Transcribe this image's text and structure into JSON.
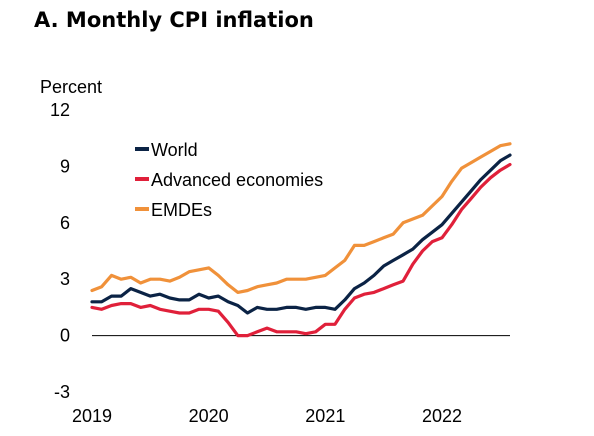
{
  "chart_data": {
    "type": "line",
    "title": "A. Monthly CPI inflation",
    "ylabel": "Percent",
    "xlabel": "",
    "ylim": [
      -3,
      12
    ],
    "yticks": [
      "12",
      "9",
      "6",
      "3",
      "0",
      "-3"
    ],
    "ytick_values": [
      12,
      9,
      6,
      3,
      0,
      -3
    ],
    "xticks": [
      "2019",
      "2020",
      "2021",
      "2022"
    ],
    "xtick_values": [
      2019,
      2020,
      2021,
      2022
    ],
    "x": [
      2019.0,
      2019.083,
      2019.167,
      2019.25,
      2019.333,
      2019.417,
      2019.5,
      2019.583,
      2019.667,
      2019.75,
      2019.833,
      2019.917,
      2020.0,
      2020.083,
      2020.167,
      2020.25,
      2020.333,
      2020.417,
      2020.5,
      2020.583,
      2020.667,
      2020.75,
      2020.833,
      2020.917,
      2021.0,
      2021.083,
      2021.167,
      2021.25,
      2021.333,
      2021.417,
      2021.5,
      2021.583,
      2021.667,
      2021.75,
      2021.833,
      2021.917,
      2022.0,
      2022.083,
      2022.167,
      2022.25,
      2022.333,
      2022.417,
      2022.5,
      2022.583
    ],
    "legend_position": "upper-left",
    "grid": false,
    "series": [
      {
        "name": "World",
        "color": "#0b2345",
        "values": [
          1.8,
          1.8,
          2.1,
          2.1,
          2.5,
          2.3,
          2.1,
          2.2,
          2.0,
          1.9,
          1.9,
          2.2,
          2.0,
          2.1,
          1.8,
          1.6,
          1.2,
          1.5,
          1.4,
          1.4,
          1.5,
          1.5,
          1.4,
          1.5,
          1.5,
          1.4,
          1.9,
          2.5,
          2.8,
          3.2,
          3.7,
          4.0,
          4.3,
          4.6,
          5.1,
          5.5,
          5.9,
          6.5,
          7.1,
          7.7,
          8.3,
          8.8,
          9.3,
          9.6
        ]
      },
      {
        "name": "Advanced economies",
        "color": "#e0203a",
        "values": [
          1.5,
          1.4,
          1.6,
          1.7,
          1.7,
          1.5,
          1.6,
          1.4,
          1.3,
          1.2,
          1.2,
          1.4,
          1.4,
          1.3,
          0.7,
          0.0,
          0.0,
          0.2,
          0.4,
          0.2,
          0.2,
          0.2,
          0.1,
          0.2,
          0.6,
          0.6,
          1.4,
          2.0,
          2.2,
          2.3,
          2.5,
          2.7,
          2.9,
          3.8,
          4.5,
          5.0,
          5.2,
          5.9,
          6.7,
          7.3,
          7.9,
          8.4,
          8.8,
          9.1
        ]
      },
      {
        "name": "EMDEs",
        "color": "#f0913a",
        "values": [
          2.4,
          2.6,
          3.2,
          3.0,
          3.1,
          2.8,
          3.0,
          3.0,
          2.9,
          3.1,
          3.4,
          3.5,
          3.6,
          3.2,
          2.7,
          2.3,
          2.4,
          2.6,
          2.7,
          2.8,
          3.0,
          3.0,
          3.0,
          3.1,
          3.2,
          3.6,
          4.0,
          4.8,
          4.8,
          5.0,
          5.2,
          5.4,
          6.0,
          6.2,
          6.4,
          6.9,
          7.4,
          8.2,
          8.9,
          9.2,
          9.5,
          9.8,
          10.1,
          10.2
        ]
      }
    ]
  }
}
